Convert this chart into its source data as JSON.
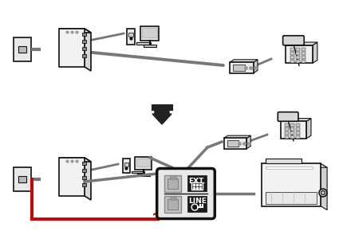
{
  "bg_color": "#ffffff",
  "line_color": "#777777",
  "red_color": "#cc0000",
  "black_color": "#111111",
  "arrow_color": "#222222",
  "ext_label": "EXT.",
  "line_label": "LINE",
  "fig_width": 4.25,
  "fig_height": 3.0,
  "dpi": 100
}
